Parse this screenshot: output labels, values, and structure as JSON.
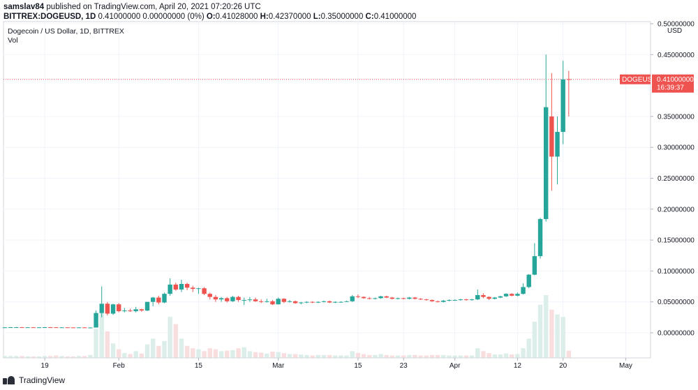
{
  "header": {
    "author": "samslav84",
    "published_text": "published on TradingView.com, April 20, 2021 07:20:26 UTC",
    "symbol": "BITTREX:DOGEUSD, 1D",
    "change": "0.41000000 0.00000000 (0%)",
    "o_label": "O:",
    "o_value": "0.41028000",
    "h_label": "H:",
    "h_value": "0.42370000",
    "l_label": "L:",
    "l_value": "0.35000000",
    "c_label": "C:",
    "c_value": "0.41000000"
  },
  "pane": {
    "title": "Dogecoin / US Dollar, 1D, BITTREX",
    "vol_label": "Vol"
  },
  "price_tag": {
    "symbol": "DOGEUSD",
    "value": "0.41000000",
    "countdown": "16:39:37"
  },
  "footer": {
    "brand": "TradingView"
  },
  "colors": {
    "up": "#26a69a",
    "down": "#ef5350",
    "vol_up": "#dbeee9",
    "vol_down": "#f8dede",
    "grid": "#f0f3fa",
    "axis_text": "#131722"
  },
  "chart_data": {
    "type": "candlestick",
    "ylabel": "USD",
    "y_ticks": [
      0.5,
      0.45,
      0.35,
      0.3,
      0.25,
      0.2,
      0.15,
      0.1,
      0.05,
      0.0
    ],
    "y_tick_labels": [
      "0.50000000",
      "0.45000000",
      "0.35000000",
      "0.30000000",
      "0.25000000",
      "0.20000000",
      "0.15000000",
      "0.10000000",
      "0.05000000",
      "0.00000000"
    ],
    "x_tick_labels": [
      {
        "label": "19",
        "date": "2021-01-19"
      },
      {
        "label": "Feb",
        "date": "2021-02-01"
      },
      {
        "label": "15",
        "date": "2021-02-15"
      },
      {
        "label": "Mar",
        "date": "2021-03-01"
      },
      {
        "label": "15",
        "date": "2021-03-15"
      },
      {
        "label": "23",
        "date": "2021-03-23"
      },
      {
        "label": "Apr",
        "date": "2021-04-01"
      },
      {
        "label": "12",
        "date": "2021-04-12"
      },
      {
        "label": "20",
        "date": "2021-04-20"
      },
      {
        "label": "May",
        "date": "2021-05-01"
      }
    ],
    "last_price": 0.41,
    "candles": [
      {
        "d": "2021-01-12",
        "o": 0.0088,
        "h": 0.0092,
        "l": 0.0084,
        "c": 0.0088,
        "v": 4
      },
      {
        "d": "2021-01-13",
        "o": 0.0088,
        "h": 0.0092,
        "l": 0.0085,
        "c": 0.009,
        "v": 4
      },
      {
        "d": "2021-01-14",
        "o": 0.009,
        "h": 0.0094,
        "l": 0.0086,
        "c": 0.009,
        "v": 4
      },
      {
        "d": "2021-01-15",
        "o": 0.009,
        "h": 0.0093,
        "l": 0.0085,
        "c": 0.0088,
        "v": 4
      },
      {
        "d": "2021-01-16",
        "o": 0.0088,
        "h": 0.0091,
        "l": 0.0086,
        "c": 0.0089,
        "v": 3
      },
      {
        "d": "2021-01-17",
        "o": 0.0089,
        "h": 0.0092,
        "l": 0.0086,
        "c": 0.0088,
        "v": 3
      },
      {
        "d": "2021-01-18",
        "o": 0.0088,
        "h": 0.0091,
        "l": 0.0085,
        "c": 0.0088,
        "v": 3
      },
      {
        "d": "2021-01-19",
        "o": 0.0088,
        "h": 0.0093,
        "l": 0.0086,
        "c": 0.009,
        "v": 4
      },
      {
        "d": "2021-01-20",
        "o": 0.009,
        "h": 0.0093,
        "l": 0.0086,
        "c": 0.0089,
        "v": 4
      },
      {
        "d": "2021-01-21",
        "o": 0.0089,
        "h": 0.0091,
        "l": 0.0083,
        "c": 0.0087,
        "v": 5
      },
      {
        "d": "2021-01-22",
        "o": 0.0087,
        "h": 0.009,
        "l": 0.0084,
        "c": 0.0088,
        "v": 4
      },
      {
        "d": "2021-01-23",
        "o": 0.0088,
        "h": 0.009,
        "l": 0.0085,
        "c": 0.0087,
        "v": 3
      },
      {
        "d": "2021-01-24",
        "o": 0.0087,
        "h": 0.0089,
        "l": 0.0084,
        "c": 0.0086,
        "v": 3
      },
      {
        "d": "2021-01-25",
        "o": 0.0086,
        "h": 0.009,
        "l": 0.0083,
        "c": 0.0087,
        "v": 4
      },
      {
        "d": "2021-01-26",
        "o": 0.0087,
        "h": 0.0089,
        "l": 0.0083,
        "c": 0.0085,
        "v": 4
      },
      {
        "d": "2021-01-27",
        "o": 0.0085,
        "h": 0.0088,
        "l": 0.0077,
        "c": 0.0085,
        "v": 6
      },
      {
        "d": "2021-01-28",
        "o": 0.0085,
        "h": 0.036,
        "l": 0.0085,
        "c": 0.032,
        "v": 60
      },
      {
        "d": "2021-01-29",
        "o": 0.032,
        "h": 0.075,
        "l": 0.025,
        "c": 0.047,
        "v": 100
      },
      {
        "d": "2021-01-30",
        "o": 0.047,
        "h": 0.05,
        "l": 0.028,
        "c": 0.031,
        "v": 55
      },
      {
        "d": "2021-01-31",
        "o": 0.031,
        "h": 0.047,
        "l": 0.029,
        "c": 0.046,
        "v": 30
      },
      {
        "d": "2021-02-01",
        "o": 0.046,
        "h": 0.048,
        "l": 0.033,
        "c": 0.035,
        "v": 18
      },
      {
        "d": "2021-02-02",
        "o": 0.035,
        "h": 0.04,
        "l": 0.033,
        "c": 0.036,
        "v": 10
      },
      {
        "d": "2021-02-03",
        "o": 0.036,
        "h": 0.039,
        "l": 0.034,
        "c": 0.035,
        "v": 8
      },
      {
        "d": "2021-02-04",
        "o": 0.035,
        "h": 0.042,
        "l": 0.033,
        "c": 0.038,
        "v": 14
      },
      {
        "d": "2021-02-05",
        "o": 0.038,
        "h": 0.039,
        "l": 0.034,
        "c": 0.036,
        "v": 9
      },
      {
        "d": "2021-02-06",
        "o": 0.036,
        "h": 0.05,
        "l": 0.035,
        "c": 0.05,
        "v": 28
      },
      {
        "d": "2021-02-07",
        "o": 0.05,
        "h": 0.058,
        "l": 0.043,
        "c": 0.057,
        "v": 40
      },
      {
        "d": "2021-02-08",
        "o": 0.057,
        "h": 0.06,
        "l": 0.046,
        "c": 0.049,
        "v": 25
      },
      {
        "d": "2021-02-09",
        "o": 0.049,
        "h": 0.065,
        "l": 0.048,
        "c": 0.063,
        "v": 35
      },
      {
        "d": "2021-02-10",
        "o": 0.063,
        "h": 0.088,
        "l": 0.06,
        "c": 0.078,
        "v": 85
      },
      {
        "d": "2021-02-11",
        "o": 0.078,
        "h": 0.081,
        "l": 0.068,
        "c": 0.07,
        "v": 70
      },
      {
        "d": "2021-02-12",
        "o": 0.07,
        "h": 0.086,
        "l": 0.066,
        "c": 0.079,
        "v": 40
      },
      {
        "d": "2021-02-13",
        "o": 0.079,
        "h": 0.081,
        "l": 0.069,
        "c": 0.073,
        "v": 25
      },
      {
        "d": "2021-02-14",
        "o": 0.073,
        "h": 0.076,
        "l": 0.066,
        "c": 0.071,
        "v": 20
      },
      {
        "d": "2021-02-15",
        "o": 0.071,
        "h": 0.073,
        "l": 0.063,
        "c": 0.072,
        "v": 18
      },
      {
        "d": "2021-02-16",
        "o": 0.072,
        "h": 0.074,
        "l": 0.061,
        "c": 0.063,
        "v": 14
      },
      {
        "d": "2021-02-17",
        "o": 0.063,
        "h": 0.065,
        "l": 0.054,
        "c": 0.058,
        "v": 20
      },
      {
        "d": "2021-02-18",
        "o": 0.058,
        "h": 0.061,
        "l": 0.05,
        "c": 0.054,
        "v": 18
      },
      {
        "d": "2021-02-19",
        "o": 0.054,
        "h": 0.058,
        "l": 0.05,
        "c": 0.056,
        "v": 14
      },
      {
        "d": "2021-02-20",
        "o": 0.056,
        "h": 0.058,
        "l": 0.049,
        "c": 0.051,
        "v": 15
      },
      {
        "d": "2021-02-21",
        "o": 0.051,
        "h": 0.06,
        "l": 0.05,
        "c": 0.058,
        "v": 16
      },
      {
        "d": "2021-02-22",
        "o": 0.058,
        "h": 0.06,
        "l": 0.05,
        "c": 0.053,
        "v": 20
      },
      {
        "d": "2021-02-23",
        "o": 0.053,
        "h": 0.057,
        "l": 0.045,
        "c": 0.053,
        "v": 22
      },
      {
        "d": "2021-02-24",
        "o": 0.053,
        "h": 0.058,
        "l": 0.05,
        "c": 0.054,
        "v": 14
      },
      {
        "d": "2021-02-25",
        "o": 0.054,
        "h": 0.057,
        "l": 0.05,
        "c": 0.051,
        "v": 12
      },
      {
        "d": "2021-02-26",
        "o": 0.051,
        "h": 0.054,
        "l": 0.048,
        "c": 0.05,
        "v": 11
      },
      {
        "d": "2021-02-27",
        "o": 0.05,
        "h": 0.055,
        "l": 0.049,
        "c": 0.051,
        "v": 9
      },
      {
        "d": "2021-02-28",
        "o": 0.051,
        "h": 0.053,
        "l": 0.045,
        "c": 0.046,
        "v": 13
      },
      {
        "d": "2021-03-01",
        "o": 0.046,
        "h": 0.057,
        "l": 0.046,
        "c": 0.055,
        "v": 12
      },
      {
        "d": "2021-03-02",
        "o": 0.055,
        "h": 0.056,
        "l": 0.048,
        "c": 0.05,
        "v": 10
      },
      {
        "d": "2021-03-03",
        "o": 0.05,
        "h": 0.053,
        "l": 0.049,
        "c": 0.051,
        "v": 8
      },
      {
        "d": "2021-03-04",
        "o": 0.051,
        "h": 0.052,
        "l": 0.047,
        "c": 0.048,
        "v": 8
      },
      {
        "d": "2021-03-05",
        "o": 0.048,
        "h": 0.05,
        "l": 0.046,
        "c": 0.049,
        "v": 7
      },
      {
        "d": "2021-03-06",
        "o": 0.049,
        "h": 0.051,
        "l": 0.048,
        "c": 0.05,
        "v": 6
      },
      {
        "d": "2021-03-07",
        "o": 0.05,
        "h": 0.051,
        "l": 0.048,
        "c": 0.049,
        "v": 5
      },
      {
        "d": "2021-03-08",
        "o": 0.049,
        "h": 0.051,
        "l": 0.048,
        "c": 0.05,
        "v": 6
      },
      {
        "d": "2021-03-09",
        "o": 0.05,
        "h": 0.052,
        "l": 0.049,
        "c": 0.051,
        "v": 6
      },
      {
        "d": "2021-03-10",
        "o": 0.051,
        "h": 0.052,
        "l": 0.048,
        "c": 0.049,
        "v": 6
      },
      {
        "d": "2021-03-11",
        "o": 0.049,
        "h": 0.051,
        "l": 0.048,
        "c": 0.05,
        "v": 5
      },
      {
        "d": "2021-03-12",
        "o": 0.05,
        "h": 0.051,
        "l": 0.049,
        "c": 0.05,
        "v": 5
      },
      {
        "d": "2021-03-13",
        "o": 0.05,
        "h": 0.052,
        "l": 0.05,
        "c": 0.051,
        "v": 5
      },
      {
        "d": "2021-03-14",
        "o": 0.051,
        "h": 0.061,
        "l": 0.05,
        "c": 0.059,
        "v": 14
      },
      {
        "d": "2021-03-15",
        "o": 0.059,
        "h": 0.062,
        "l": 0.056,
        "c": 0.058,
        "v": 10
      },
      {
        "d": "2021-03-16",
        "o": 0.058,
        "h": 0.059,
        "l": 0.055,
        "c": 0.056,
        "v": 8
      },
      {
        "d": "2021-03-17",
        "o": 0.056,
        "h": 0.058,
        "l": 0.054,
        "c": 0.055,
        "v": 6
      },
      {
        "d": "2021-03-18",
        "o": 0.055,
        "h": 0.057,
        "l": 0.054,
        "c": 0.056,
        "v": 6
      },
      {
        "d": "2021-03-19",
        "o": 0.056,
        "h": 0.06,
        "l": 0.055,
        "c": 0.059,
        "v": 8
      },
      {
        "d": "2021-03-20",
        "o": 0.059,
        "h": 0.06,
        "l": 0.056,
        "c": 0.057,
        "v": 6
      },
      {
        "d": "2021-03-21",
        "o": 0.057,
        "h": 0.058,
        "l": 0.054,
        "c": 0.055,
        "v": 5
      },
      {
        "d": "2021-03-22",
        "o": 0.055,
        "h": 0.057,
        "l": 0.054,
        "c": 0.056,
        "v": 5
      },
      {
        "d": "2021-03-23",
        "o": 0.056,
        "h": 0.057,
        "l": 0.054,
        "c": 0.055,
        "v": 5
      },
      {
        "d": "2021-03-24",
        "o": 0.055,
        "h": 0.058,
        "l": 0.054,
        "c": 0.057,
        "v": 6
      },
      {
        "d": "2021-03-25",
        "o": 0.057,
        "h": 0.058,
        "l": 0.054,
        "c": 0.055,
        "v": 6
      },
      {
        "d": "2021-03-26",
        "o": 0.055,
        "h": 0.056,
        "l": 0.053,
        "c": 0.054,
        "v": 5
      },
      {
        "d": "2021-03-27",
        "o": 0.054,
        "h": 0.055,
        "l": 0.052,
        "c": 0.053,
        "v": 5
      },
      {
        "d": "2021-03-28",
        "o": 0.053,
        "h": 0.054,
        "l": 0.05,
        "c": 0.051,
        "v": 6
      },
      {
        "d": "2021-03-29",
        "o": 0.051,
        "h": 0.052,
        "l": 0.049,
        "c": 0.05,
        "v": 6
      },
      {
        "d": "2021-03-30",
        "o": 0.05,
        "h": 0.053,
        "l": 0.049,
        "c": 0.052,
        "v": 6
      },
      {
        "d": "2021-03-31",
        "o": 0.052,
        "h": 0.054,
        "l": 0.051,
        "c": 0.053,
        "v": 5
      },
      {
        "d": "2021-04-01",
        "o": 0.053,
        "h": 0.054,
        "l": 0.052,
        "c": 0.053,
        "v": 5
      },
      {
        "d": "2021-04-02",
        "o": 0.053,
        "h": 0.055,
        "l": 0.052,
        "c": 0.054,
        "v": 5
      },
      {
        "d": "2021-04-03",
        "o": 0.054,
        "h": 0.055,
        "l": 0.052,
        "c": 0.053,
        "v": 5
      },
      {
        "d": "2021-04-04",
        "o": 0.053,
        "h": 0.055,
        "l": 0.052,
        "c": 0.054,
        "v": 5
      },
      {
        "d": "2021-04-05",
        "o": 0.054,
        "h": 0.07,
        "l": 0.053,
        "c": 0.061,
        "v": 20
      },
      {
        "d": "2021-04-06",
        "o": 0.061,
        "h": 0.064,
        "l": 0.056,
        "c": 0.058,
        "v": 14
      },
      {
        "d": "2021-04-07",
        "o": 0.058,
        "h": 0.059,
        "l": 0.053,
        "c": 0.055,
        "v": 10
      },
      {
        "d": "2021-04-08",
        "o": 0.055,
        "h": 0.058,
        "l": 0.054,
        "c": 0.057,
        "v": 7
      },
      {
        "d": "2021-04-09",
        "o": 0.057,
        "h": 0.06,
        "l": 0.056,
        "c": 0.059,
        "v": 7
      },
      {
        "d": "2021-04-10",
        "o": 0.059,
        "h": 0.064,
        "l": 0.058,
        "c": 0.063,
        "v": 9
      },
      {
        "d": "2021-04-11",
        "o": 0.063,
        "h": 0.064,
        "l": 0.059,
        "c": 0.06,
        "v": 7
      },
      {
        "d": "2021-04-12",
        "o": 0.06,
        "h": 0.065,
        "l": 0.059,
        "c": 0.063,
        "v": 8
      },
      {
        "d": "2021-04-13",
        "o": 0.063,
        "h": 0.08,
        "l": 0.062,
        "c": 0.074,
        "v": 20
      },
      {
        "d": "2021-04-14",
        "o": 0.074,
        "h": 0.095,
        "l": 0.072,
        "c": 0.094,
        "v": 40
      },
      {
        "d": "2021-04-15",
        "o": 0.094,
        "h": 0.145,
        "l": 0.093,
        "c": 0.124,
        "v": 75
      },
      {
        "d": "2021-04-16",
        "o": 0.124,
        "h": 0.186,
        "l": 0.12,
        "c": 0.184,
        "v": 110
      },
      {
        "d": "2021-04-17",
        "o": 0.184,
        "h": 0.45,
        "l": 0.18,
        "c": 0.365,
        "v": 130
      },
      {
        "d": "2021-04-18",
        "o": 0.35,
        "h": 0.42,
        "l": 0.23,
        "c": 0.285,
        "v": 100
      },
      {
        "d": "2021-04-19",
        "o": 0.285,
        "h": 0.35,
        "l": 0.24,
        "c": 0.325,
        "v": 90
      },
      {
        "d": "2021-04-20",
        "o": 0.325,
        "h": 0.44,
        "l": 0.305,
        "c": 0.41,
        "v": 85
      },
      {
        "d": "2021-04-21",
        "o": 0.41028,
        "h": 0.4237,
        "l": 0.35,
        "c": 0.41,
        "v": 15
      }
    ]
  }
}
